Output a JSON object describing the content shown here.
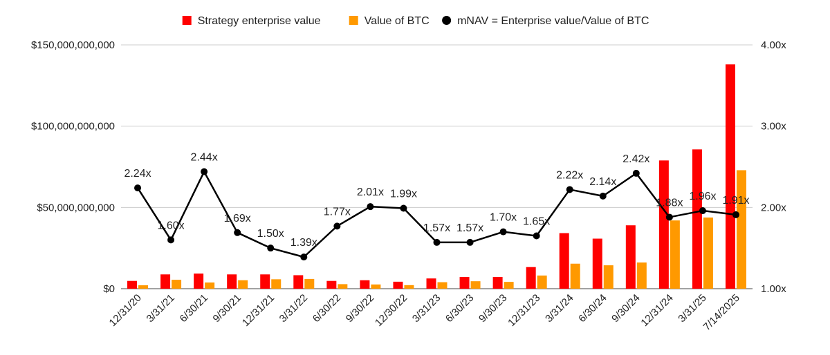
{
  "chart_data": {
    "type": "bar",
    "title": "",
    "xlabel": "",
    "ylabel": "",
    "categories": [
      "12/31/20",
      "3/31/21",
      "6/30/21",
      "9/30/21",
      "12/31/21",
      "3/31/22",
      "6/30/22",
      "9/30/22",
      "12/30/22",
      "3/31/23",
      "6/30/23",
      "9/30/23",
      "12/31/23",
      "3/31/24",
      "6/30/24",
      "9/30/24",
      "12/31/24",
      "3/31/25",
      "7/14/2025"
    ],
    "ylim": [
      0,
      150000000000
    ],
    "y_ticks": [
      {
        "value": 0,
        "label": "$0"
      },
      {
        "value": 50000000000,
        "label": "$50,000,000,000"
      },
      {
        "value": 100000000000,
        "label": "$100,000,000,000"
      },
      {
        "value": 150000000000,
        "label": "$150,000,000,000"
      }
    ],
    "y2lim": [
      1.0,
      4.0
    ],
    "y2_ticks": [
      {
        "value": 1.0,
        "label": "1.00x"
      },
      {
        "value": 2.0,
        "label": "2.00x"
      },
      {
        "value": 3.0,
        "label": "3.00x"
      },
      {
        "value": 4.0,
        "label": "4.00x"
      }
    ],
    "grid": true,
    "legend_position": "top-center",
    "series": [
      {
        "name": "Strategy enterprise value",
        "kind": "bar",
        "color": "#ff0000",
        "values": [
          4800000000,
          8800000000,
          9300000000,
          8800000000,
          8800000000,
          8300000000,
          4800000000,
          5200000000,
          4300000000,
          6300000000,
          7200000000,
          7200000000,
          13300000000,
          34200000000,
          30800000000,
          39000000000,
          78900000000,
          85700000000,
          138000000000
        ]
      },
      {
        "name": "Value of BTC",
        "kind": "bar",
        "color": "#ff9900",
        "values": [
          2100000000,
          5500000000,
          3800000000,
          5200000000,
          5800000000,
          6000000000,
          2800000000,
          2600000000,
          2200000000,
          4000000000,
          4600000000,
          4200000000,
          8100000000,
          15400000000,
          14400000000,
          16100000000,
          42000000000,
          43800000000,
          72900000000
        ]
      },
      {
        "name": "mNAV = Enterprise value/Value of BTC",
        "kind": "line",
        "axis": "right",
        "color": "#000000",
        "values": [
          2.24,
          1.6,
          2.44,
          1.69,
          1.5,
          1.39,
          1.77,
          2.01,
          1.99,
          1.57,
          1.57,
          1.7,
          1.65,
          2.22,
          2.14,
          2.42,
          1.88,
          1.96,
          1.91
        ],
        "labels": [
          "2.24x",
          "1.60x",
          "2.44x",
          "1.69x",
          "1.50x",
          "1.39x",
          "1.77x",
          "2.01x",
          "1.99x",
          "1.57x",
          "1.57x",
          "1.70x",
          "1.65x",
          "2.22x",
          "2.14x",
          "2.42x",
          "1.88x",
          "1.96x",
          "1.91x"
        ]
      }
    ]
  }
}
